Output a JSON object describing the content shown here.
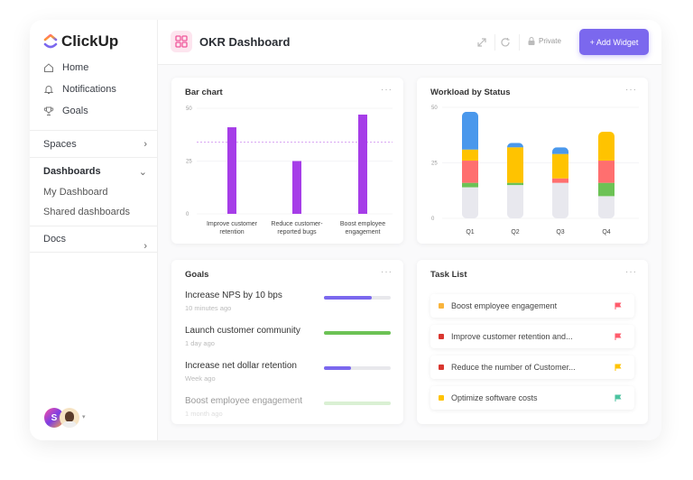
{
  "brand": {
    "name": "ClickUp"
  },
  "sidebar": {
    "nav": [
      {
        "label": "Home",
        "icon": "home-icon"
      },
      {
        "label": "Notifications",
        "icon": "bell-icon"
      },
      {
        "label": "Goals",
        "icon": "trophy-icon"
      }
    ],
    "spaces": "Spaces",
    "dashboards": "Dashboards",
    "dashboard_items": [
      "My Dashboard",
      "Shared dashboards"
    ],
    "docs": "Docs",
    "avatar_initial": "S"
  },
  "header": {
    "title": "OKR Dashboard",
    "privacy": "Private",
    "add_widget": "+ Add Widget"
  },
  "bar_widget": {
    "title": "Bar chart",
    "menu": "···"
  },
  "workload_widget": {
    "title": "Workload by Status",
    "menu": "···"
  },
  "chart_data": [
    {
      "type": "bar",
      "title": "Bar chart",
      "categories": [
        "Improve customer retention",
        "Reduce customer-reported bugs",
        "Boost employee engagement"
      ],
      "categories_lines": [
        [
          "Improve customer",
          "retention"
        ],
        [
          "Reduce customer-",
          "reported bugs"
        ],
        [
          "Boost employee",
          "engagement"
        ]
      ],
      "values": [
        41,
        25,
        47
      ],
      "target_line": 34,
      "ylim": [
        0,
        50
      ],
      "yticks": [
        "0",
        "25",
        "50"
      ],
      "color": "#a63de8"
    },
    {
      "type": "bar",
      "stacked": true,
      "title": "Workload by Status",
      "categories": [
        "Q1",
        "Q2",
        "Q3",
        "Q4"
      ],
      "ylim": [
        0,
        50
      ],
      "yticks": [
        "0",
        "25",
        "50"
      ],
      "series": [
        {
          "color": "#e8e8ee",
          "values": [
            14,
            15,
            16,
            10
          ]
        },
        {
          "color": "#6cc255",
          "values": [
            2,
            1,
            0,
            6
          ]
        },
        {
          "color": "#ff6f6f",
          "values": [
            10,
            0,
            2,
            10
          ]
        },
        {
          "color": "#ffc300",
          "values": [
            5,
            16,
            11,
            13
          ]
        },
        {
          "color": "#4a98ec",
          "values": [
            17,
            2,
            3,
            0
          ]
        }
      ]
    }
  ],
  "goals": {
    "title": "Goals",
    "menu": "···",
    "items": [
      {
        "name": "Increase NPS by 10 bps",
        "time": "10 minutes ago",
        "progress": 0.72,
        "color": "#7b68ee"
      },
      {
        "name": "Launch customer community",
        "time": "1 day ago",
        "progress": 1.0,
        "color": "#6cc255"
      },
      {
        "name": "Increase net dollar retention",
        "time": "Week ago",
        "progress": 0.4,
        "color": "#7b68ee"
      },
      {
        "name": "Boost employee engagement",
        "time": "1 month ago",
        "progress": 1.0,
        "color": "#b7e3a8"
      }
    ]
  },
  "tasks": {
    "title": "Task List",
    "menu": "···",
    "items": [
      {
        "name": "Boost employee engagement",
        "status_color": "#f9b43c",
        "flag_color": "#ff5c6c"
      },
      {
        "name": "Improve customer retention and...",
        "status_color": "#d9362f",
        "flag_color": "#ff5c6c"
      },
      {
        "name": "Reduce the number of Customer...",
        "status_color": "#d9362f",
        "flag_color": "#ffc300"
      },
      {
        "name": "Optimize software costs",
        "status_color": "#ffc300",
        "flag_color": "#4cc3a0"
      }
    ]
  }
}
